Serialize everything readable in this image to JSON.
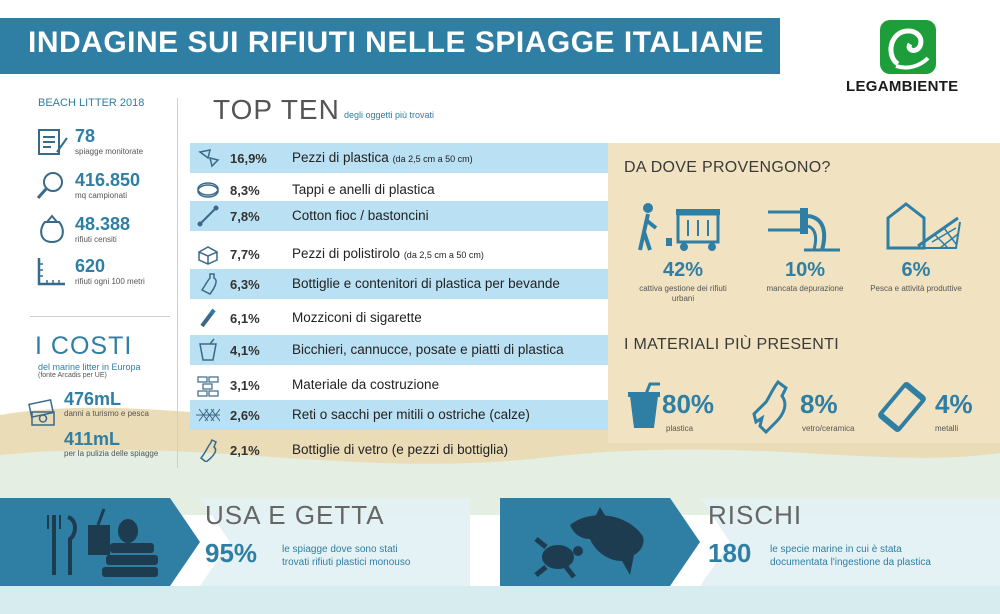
{
  "title": "INDAGINE SUI RIFIUTI NELLE SPIAGGE ITALIANE",
  "logo": {
    "text": "LEGAMBIENTE",
    "icon": "swan-logo-icon",
    "color": "#1e9e3a"
  },
  "colors": {
    "accent": "#2f7ea3",
    "highlight": "#b9e0f3",
    "beige": "#f1e3c2",
    "sand": "#eadcb6"
  },
  "beach_litter": {
    "subtitle": "BEACH LITTER 2018",
    "stats": [
      {
        "value": "78",
        "label": "spiagge monitorate",
        "icon": "clipboard-icon"
      },
      {
        "value": "416.850",
        "label": "mq campionati",
        "icon": "magnifier-icon"
      },
      {
        "value": "48.388",
        "label": "rifiuti censiti",
        "icon": "trash-bag-icon"
      },
      {
        "value": "620",
        "label": "rifiuti ogni 100 metri",
        "icon": "ruler-icon"
      }
    ]
  },
  "costi": {
    "title": "I COSTI",
    "subtitle": "del marine litter in Europa",
    "source": "(fonte Arcadis per UE)",
    "items": [
      {
        "value": "476mL",
        "label": "danni a turismo e pesca"
      },
      {
        "value": "411mL",
        "label": "per la pulizia delle spiagge"
      }
    ]
  },
  "top_ten": {
    "title": "TOP TEN",
    "subtitle": "degli oggetti più trovati",
    "items": [
      {
        "pct": "16,9%",
        "label": "Pezzi di plastica",
        "note": "(da 2,5 cm a 50 cm)",
        "icon": "plastic-pieces-icon"
      },
      {
        "pct": "8,3%",
        "label": "Tappi e anelli di plastica",
        "note": "",
        "icon": "bottle-cap-icon"
      },
      {
        "pct": "7,8%",
        "label": "Cotton fioc / bastoncini",
        "note": "",
        "icon": "cotton-swab-icon"
      },
      {
        "pct": "7,7%",
        "label": "Pezzi di polistirolo",
        "note": "(da 2,5 cm a 50 cm)",
        "icon": "polystyrene-icon"
      },
      {
        "pct": "6,3%",
        "label": "Bottiglie e contenitori di plastica per bevande",
        "note": "",
        "icon": "plastic-bottle-icon"
      },
      {
        "pct": "6,1%",
        "label": "Mozziconi di sigarette",
        "note": "",
        "icon": "cigarette-icon"
      },
      {
        "pct": "4,1%",
        "label": "Bicchieri, cannucce, posate e piatti di plastica",
        "note": "",
        "icon": "cup-icon"
      },
      {
        "pct": "3,1%",
        "label": "Materiale da costruzione",
        "note": "",
        "icon": "bricks-icon"
      },
      {
        "pct": "2,6%",
        "label": "Reti o sacchi per mitili o ostriche (calze)",
        "note": "",
        "icon": "net-icon"
      },
      {
        "pct": "2,1%",
        "label": "Bottiglie di vetro (e pezzi di bottiglia)",
        "note": "",
        "icon": "glass-bottle-icon"
      }
    ]
  },
  "provenienza": {
    "title": "DA DOVE PROVENGONO?",
    "items": [
      {
        "pct": "42%",
        "label": "cattiva gestione dei rifiuti urbani",
        "icon": "dumpster-icon"
      },
      {
        "pct": "10%",
        "label": "mancata depurazione",
        "icon": "pipe-outflow-icon"
      },
      {
        "pct": "6%",
        "label": "Pesca e attività produttive",
        "icon": "fishing-net-icon"
      }
    ]
  },
  "materiali": {
    "title": "I MATERIALI PIÙ PRESENTI",
    "items": [
      {
        "pct": "80%",
        "label": "plastica",
        "icon": "plastic-cup-icon"
      },
      {
        "pct": "8%",
        "label": "vetro/ceramica",
        "icon": "broken-bottle-icon"
      },
      {
        "pct": "4%",
        "label": "metalli",
        "icon": "can-icon"
      }
    ]
  },
  "usa_e_getta": {
    "title": "USA E GETTA",
    "pct": "95%",
    "label_1": "le spiagge dove sono stati",
    "label_2": "trovati rifiuti plastici monouso",
    "icon": "disposable-items-icon"
  },
  "rischi": {
    "title": "RISCHI",
    "value": "180",
    "label_1": "le specie marine in cui è stata",
    "label_2": "documentata l'ingestione da plastica",
    "icon": "dolphin-turtle-icon"
  }
}
